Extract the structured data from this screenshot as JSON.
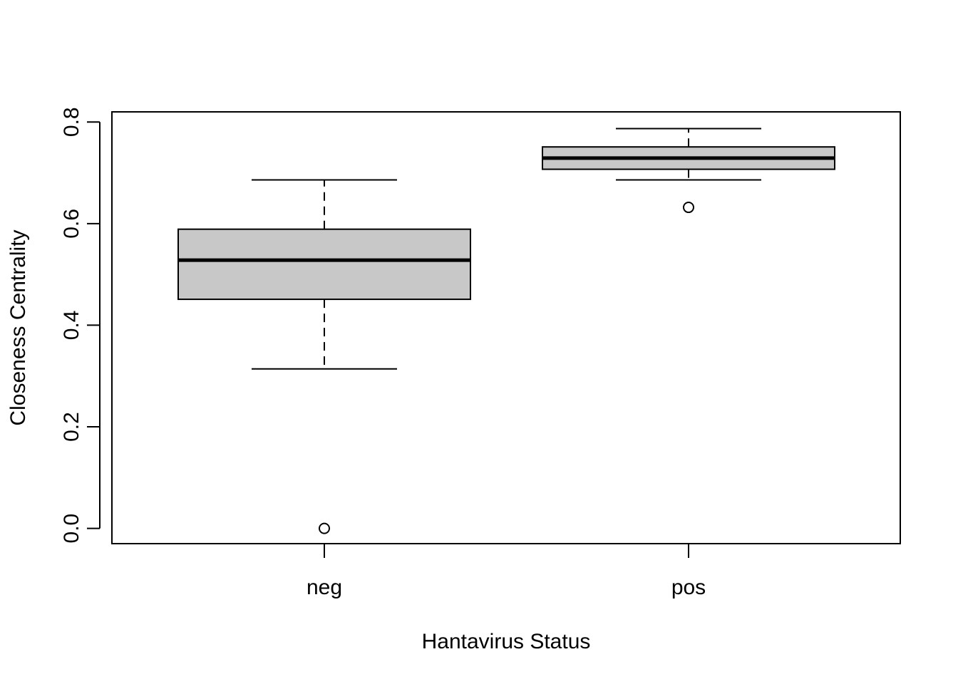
{
  "chart_data": {
    "type": "boxplot",
    "title": "",
    "xlabel": "Hantavirus Status",
    "ylabel": "Closeness Centrality",
    "categories": [
      "neg",
      "pos"
    ],
    "ylim": [
      -0.03,
      0.82
    ],
    "yticks": [
      0.0,
      0.2,
      0.4,
      0.6,
      0.8
    ],
    "ytick_labels": [
      "0.0",
      "0.2",
      "0.4",
      "0.6",
      "0.8"
    ],
    "box_fill": "#c8c8c8",
    "grid": false,
    "groups": [
      {
        "category": "neg",
        "whisker_low": 0.314,
        "q1": 0.451,
        "median": 0.528,
        "q3": 0.589,
        "whisker_high": 0.686,
        "outliers": [
          0.0
        ]
      },
      {
        "category": "pos",
        "whisker_low": 0.686,
        "q1": 0.707,
        "median": 0.729,
        "q3": 0.751,
        "whisker_high": 0.787,
        "outliers": [
          0.632
        ]
      }
    ]
  }
}
